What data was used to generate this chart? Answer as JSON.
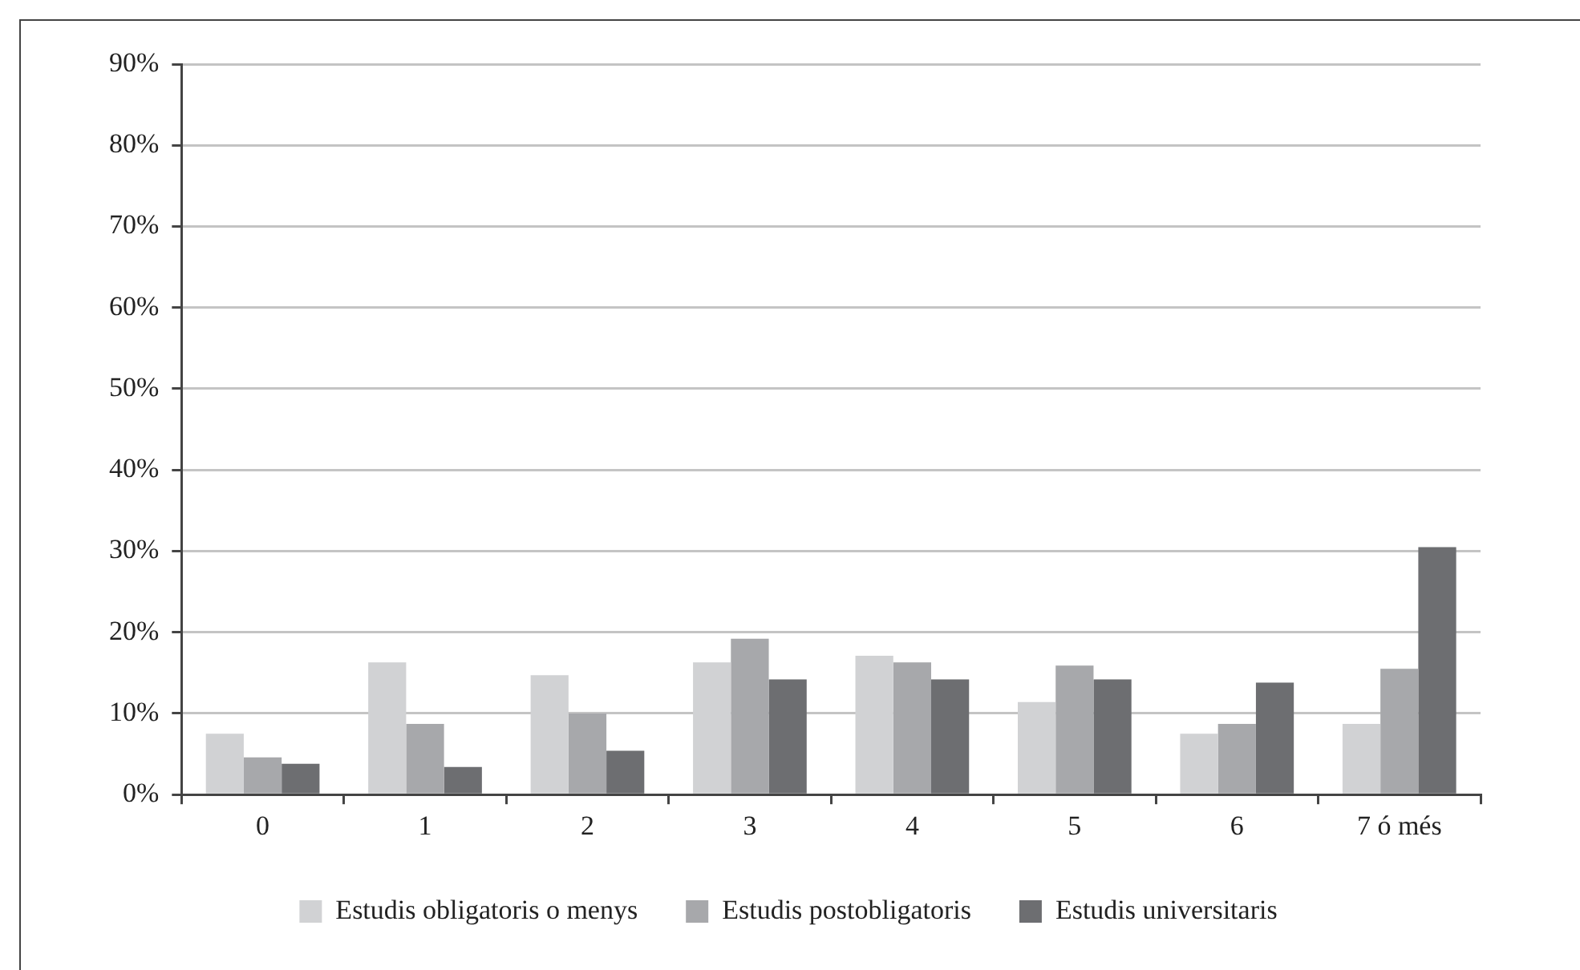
{
  "chart_data": {
    "type": "bar",
    "categories": [
      "0",
      "1",
      "2",
      "3",
      "4",
      "5",
      "6",
      "7 ó més"
    ],
    "series": [
      {
        "name": "Estudis obligatoris o menys",
        "color": "#d1d2d4",
        "values": [
          7.5,
          16.3,
          14.7,
          16.3,
          17.1,
          11.4,
          7.5,
          8.7
        ]
      },
      {
        "name": "Estudis postobligatoris",
        "color": "#a7a8ab",
        "values": [
          4.6,
          8.7,
          10.0,
          19.2,
          16.3,
          15.9,
          8.7,
          15.5
        ]
      },
      {
        "name": "Estudis universitaris",
        "color": "#6d6e71",
        "values": [
          3.8,
          3.4,
          5.4,
          14.2,
          14.2,
          14.2,
          13.8,
          30.5
        ]
      }
    ],
    "ylim": [
      0,
      90
    ],
    "yticks": [
      {
        "value": 0,
        "label": "0%"
      },
      {
        "value": 10,
        "label": "10%"
      },
      {
        "value": 20,
        "label": "20%"
      },
      {
        "value": 30,
        "label": "30%"
      },
      {
        "value": 40,
        "label": "40%"
      },
      {
        "value": 50,
        "label": "50%"
      },
      {
        "value": 60,
        "label": "60%"
      },
      {
        "value": 70,
        "label": "70%"
      },
      {
        "value": 80,
        "label": "80%"
      },
      {
        "value": 90,
        "label": "90%"
      }
    ],
    "grid": "y",
    "legend": "bottom"
  }
}
